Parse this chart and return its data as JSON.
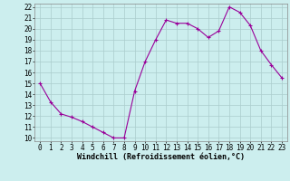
{
  "x": [
    0,
    1,
    2,
    3,
    4,
    5,
    6,
    7,
    8,
    9,
    10,
    11,
    12,
    13,
    14,
    15,
    16,
    17,
    18,
    19,
    20,
    21,
    22,
    23
  ],
  "y": [
    15.0,
    13.3,
    12.2,
    11.9,
    11.5,
    11.0,
    10.5,
    10.0,
    10.0,
    14.3,
    17.0,
    19.0,
    20.8,
    20.5,
    20.5,
    20.0,
    19.2,
    19.8,
    22.0,
    21.5,
    20.3,
    18.0,
    16.7,
    15.5
  ],
  "line_color": "#990099",
  "marker": "+",
  "marker_size": 3,
  "line_width": 0.8,
  "bg_color": "#cceeee",
  "grid_color": "#aacccc",
  "xlabel": "Windchill (Refroidissement éolien,°C)",
  "xlabel_fontsize": 6,
  "tick_fontsize": 5.5,
  "ylim": [
    10,
    22
  ],
  "xlim": [
    -0.5,
    23.5
  ],
  "yticks": [
    10,
    11,
    12,
    13,
    14,
    15,
    16,
    17,
    18,
    19,
    20,
    21,
    22
  ],
  "xticks": [
    0,
    1,
    2,
    3,
    4,
    5,
    6,
    7,
    8,
    9,
    10,
    11,
    12,
    13,
    14,
    15,
    16,
    17,
    18,
    19,
    20,
    21,
    22,
    23
  ]
}
